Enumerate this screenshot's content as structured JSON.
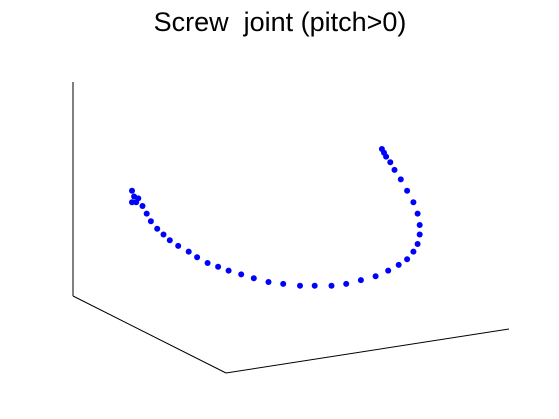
{
  "chart_data": {
    "type": "scatter",
    "title": "Screw  joint (pitch>0)",
    "projection": "3d",
    "grid": false,
    "legend": "none",
    "marker_color": "#0000ff",
    "axis_color": "#000000",
    "series": [
      {
        "points": [
          [
            -0.7,
            0.72
          ],
          [
            -0.69,
            0.75
          ],
          [
            -0.7,
            0.78
          ],
          [
            -0.68,
            0.72
          ],
          [
            -0.67,
            0.74
          ],
          [
            -0.65,
            0.7
          ],
          [
            -0.63,
            0.66
          ],
          [
            -0.61,
            0.62
          ],
          [
            -0.58,
            0.58
          ],
          [
            -0.55,
            0.55
          ],
          [
            -0.52,
            0.52
          ],
          [
            -0.48,
            0.49
          ],
          [
            -0.43,
            0.46
          ],
          [
            -0.39,
            0.43
          ],
          [
            -0.34,
            0.4
          ],
          [
            -0.29,
            0.38
          ],
          [
            -0.24,
            0.36
          ],
          [
            -0.18,
            0.34
          ],
          [
            -0.12,
            0.32
          ],
          [
            -0.05,
            0.3
          ],
          [
            0.02,
            0.29
          ],
          [
            0.1,
            0.28
          ],
          [
            0.17,
            0.28
          ],
          [
            0.25,
            0.28
          ],
          [
            0.32,
            0.29
          ],
          [
            0.39,
            0.31
          ],
          [
            0.46,
            0.33
          ],
          [
            0.52,
            0.36
          ],
          [
            0.57,
            0.39
          ],
          [
            0.61,
            0.42
          ],
          [
            0.64,
            0.46
          ],
          [
            0.66,
            0.5
          ],
          [
            0.67,
            0.55
          ],
          [
            0.67,
            0.6
          ],
          [
            0.66,
            0.66
          ],
          [
            0.64,
            0.72
          ],
          [
            0.61,
            0.78
          ],
          [
            0.58,
            0.84
          ],
          [
            0.55,
            0.89
          ],
          [
            0.53,
            0.93
          ],
          [
            0.51,
            0.96
          ],
          [
            0.5,
            0.98
          ],
          [
            0.49,
            1.0
          ]
        ]
      }
    ]
  }
}
